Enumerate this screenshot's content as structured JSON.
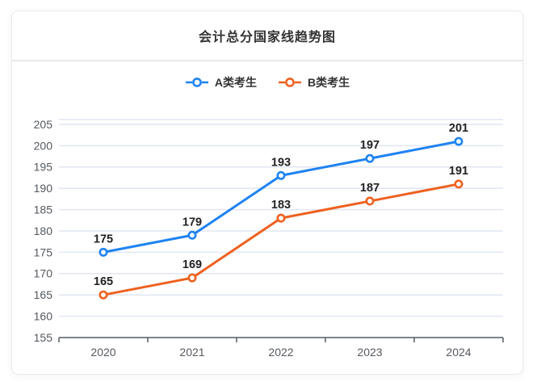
{
  "card": {
    "title": "会计总分国家线趋势图"
  },
  "chart_data": {
    "type": "line",
    "title": "会计总分国家线趋势图",
    "categories": [
      "2020",
      "2021",
      "2022",
      "2023",
      "2024"
    ],
    "series": [
      {
        "name": "A类考生",
        "values": [
          175,
          179,
          193,
          197,
          201
        ],
        "color": "#1f83f2"
      },
      {
        "name": "B类考生",
        "values": [
          165,
          169,
          183,
          187,
          191
        ],
        "color": "#ee6120"
      }
    ],
    "ylim": [
      155,
      205
    ],
    "y_step": 5,
    "grid": true,
    "legend_position": "top",
    "data_labels": true,
    "marker": "hollow-circle"
  },
  "colors": {
    "series_a": "#1f83f2",
    "series_b": "#ee6120",
    "grid_line": "#e1e6f2",
    "axis_line": "#565b64",
    "axis_label": "#54595f",
    "data_label": "#222222",
    "title_text": "#333333",
    "card_border": "#eaeaea",
    "divider": "#e9e9e9"
  }
}
